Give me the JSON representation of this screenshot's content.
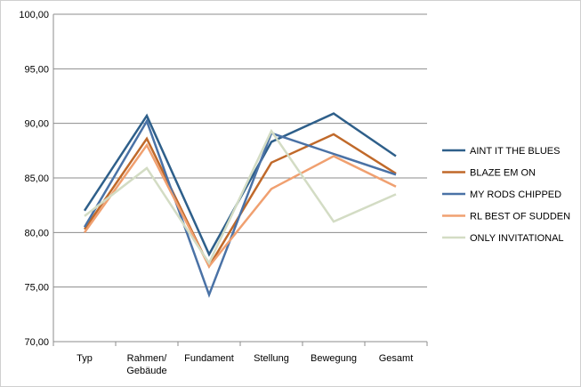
{
  "chart_data": {
    "type": "line",
    "categories": [
      [
        "Typ"
      ],
      [
        "Rahmen/",
        "Gebäude"
      ],
      [
        "Fundament"
      ],
      [
        "Stellung"
      ],
      [
        "Bewegung"
      ],
      [
        "Gesamt"
      ]
    ],
    "ylim": [
      70,
      100
    ],
    "y_ticks": [
      70,
      75,
      80,
      85,
      90,
      95,
      100
    ],
    "y_tick_labels": [
      "70,00",
      "75,00",
      "80,00",
      "85,00",
      "90,00",
      "95,00",
      "100,00"
    ],
    "grid": true,
    "legend_position": "right",
    "series": [
      {
        "name": "AINT IT THE BLUES",
        "color": "#2e5f8a",
        "values": [
          82.0,
          90.7,
          78.0,
          88.3,
          90.9,
          87.0
        ]
      },
      {
        "name": "BLAZE EM ON",
        "color": "#c0692a",
        "values": [
          80.3,
          88.6,
          76.9,
          86.4,
          89.0,
          85.4
        ]
      },
      {
        "name": "MY RODS CHIPPED",
        "color": "#4a72a6",
        "values": [
          80.5,
          90.2,
          74.3,
          89.1,
          87.2,
          85.3
        ]
      },
      {
        "name": "RL BEST OF SUDDEN",
        "color": "#f0a070",
        "values": [
          80.0,
          88.0,
          76.9,
          84.0,
          87.0,
          84.2
        ]
      },
      {
        "name": "ONLY INVITATIONAL",
        "color": "#d3dcc4",
        "values": [
          81.5,
          85.9,
          77.2,
          89.3,
          81.0,
          83.5
        ]
      }
    ]
  }
}
